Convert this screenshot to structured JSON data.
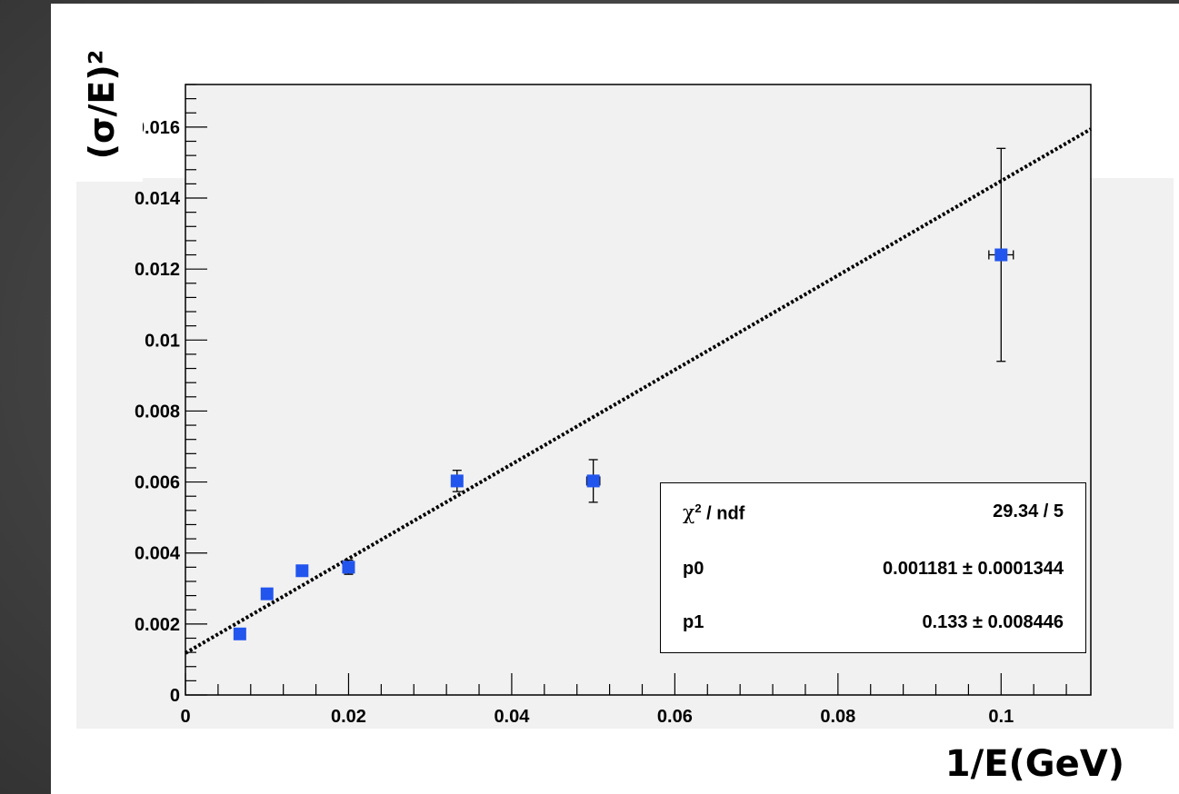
{
  "chart_data": {
    "type": "scatter",
    "title": "",
    "xlabel": "1/E(GeV)",
    "ylabel": "(σ/E)²",
    "xlim": [
      0,
      0.111
    ],
    "ylim": [
      0,
      0.0172
    ],
    "x_tick_labels": [
      "0",
      "0.02",
      "0.04",
      "0.06",
      "0.08",
      "0.1"
    ],
    "x_ticks": [
      0,
      0.02,
      0.04,
      0.06,
      0.08,
      0.1
    ],
    "y_tick_labels": [
      "0",
      "0.002",
      "0.004",
      "0.006",
      "0.008",
      "0.01",
      "0.012",
      "0.014",
      "0.016"
    ],
    "y_ticks": [
      0,
      0.002,
      0.004,
      0.006,
      0.008,
      0.01,
      0.012,
      0.014,
      0.016
    ],
    "grid": false,
    "marker_color": "#2255ee",
    "series": [
      {
        "x": [
          0.00667,
          0.01,
          0.0143,
          0.02,
          0.0333,
          0.05,
          0.1
        ],
        "y": [
          0.00172,
          0.00285,
          0.0035,
          0.0036,
          0.00603,
          0.00603,
          0.0124
        ],
        "y_err": [
          0.0001,
          0.0001,
          0.0001,
          0.0002,
          0.0003,
          0.0006,
          0.003
        ],
        "x_err": [
          0,
          0,
          0,
          0,
          0,
          0.0008,
          0.0015
        ]
      }
    ],
    "fit": {
      "style": "dotted",
      "color": "#000000",
      "intercept": 0.001181,
      "slope": 0.133,
      "x_range": [
        0,
        0.111
      ]
    },
    "stats": [
      {
        "name_symbol": "χ",
        "name_sup": "2",
        "name_rest": " / ndf",
        "value": "29.34 / 5"
      },
      {
        "name": "p0",
        "value": "0.001181 ± 0.0001344"
      },
      {
        "name": "p1",
        "value": "0.133 ± 0.008446"
      }
    ]
  }
}
